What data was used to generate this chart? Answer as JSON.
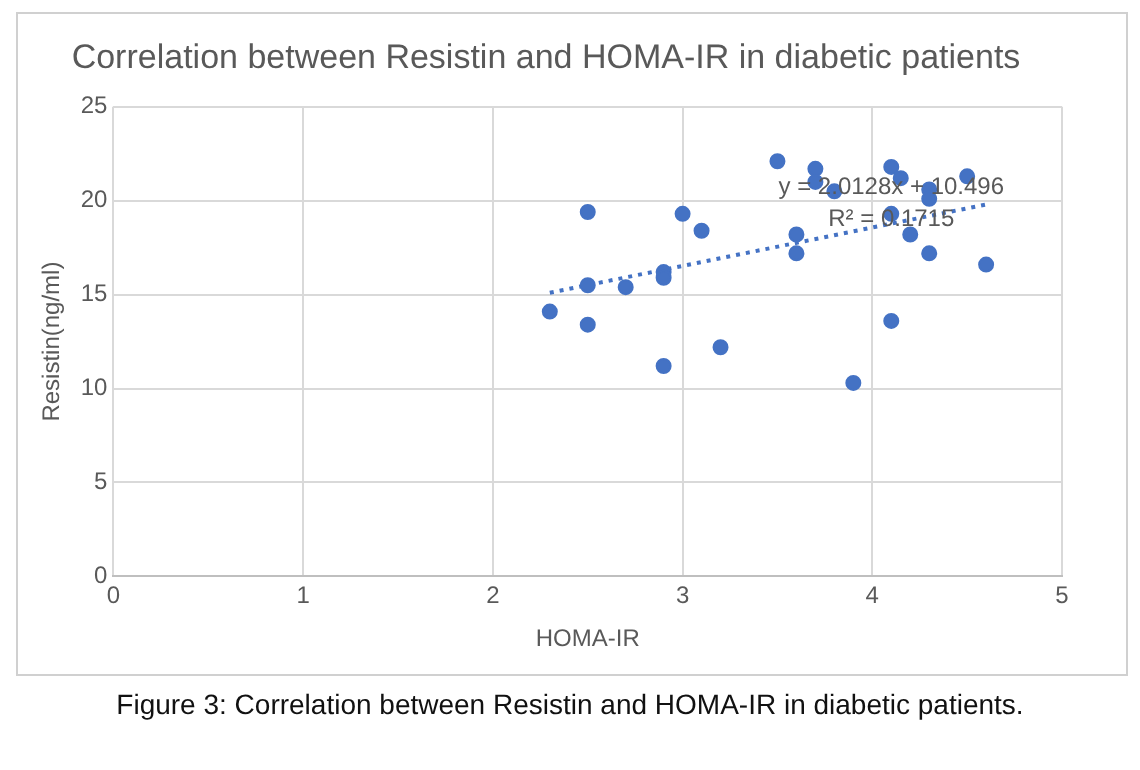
{
  "chart_data": {
    "type": "scatter",
    "title": "Correlation between Resistin and HOMA-IR in diabetic patients",
    "xlabel": "HOMA-IR",
    "ylabel": "Resistin(ng/ml)",
    "series": [
      {
        "color": "#4472c4",
        "x": [
          2.3,
          2.5,
          2.5,
          2.5,
          2.7,
          2.9,
          2.9,
          2.9,
          3.0,
          3.1,
          3.2,
          3.5,
          3.6,
          3.6,
          3.7,
          3.7,
          3.8,
          3.9,
          4.1,
          4.15,
          4.1,
          4.1,
          4.2,
          4.3,
          4.3,
          4.3,
          4.5,
          4.6
        ],
        "values": [
          14.1,
          19.4,
          15.5,
          13.4,
          15.4,
          16.2,
          15.9,
          11.2,
          19.3,
          18.4,
          12.2,
          22.1,
          18.2,
          17.2,
          21.7,
          21.0,
          20.5,
          10.3,
          21.8,
          21.2,
          19.3,
          13.6,
          18.2,
          20.6,
          20.1,
          17.2,
          21.3,
          16.6
        ],
        "marker": "circle"
      },
      {
        "type": "line",
        "color": "#4472c4",
        "x": [
          2.3,
          4.6
        ],
        "values": [
          15.1,
          19.8
        ],
        "line_style": "dotted",
        "marker": "none"
      }
    ],
    "xlim": [
      0,
      5
    ],
    "xticks": [
      0,
      1,
      2,
      3,
      4,
      5
    ],
    "ylim": [
      0,
      25
    ],
    "yticks": [
      0,
      5,
      10,
      15,
      20,
      25
    ],
    "grid": true,
    "legend": false,
    "annotations": [
      {
        "text": "y = 2.0128x + 10.496",
        "x": 4.1,
        "y": 20.7
      },
      {
        "text": "R² = 0.1715",
        "x": 4.1,
        "y": 19.0
      },
      "Figure 3: Correlation between Resistin and HOMA-IR in diabetic patients."
    ]
  }
}
